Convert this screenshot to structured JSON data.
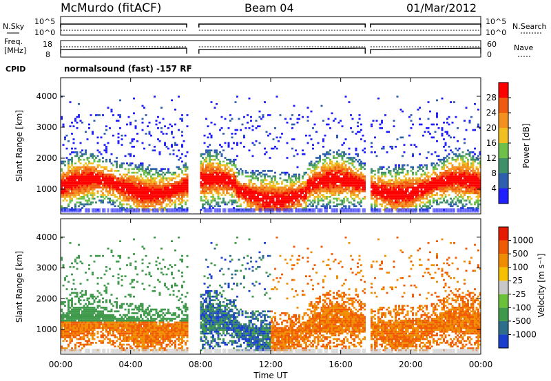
{
  "header": {
    "station": "McMurdo (fitACF)",
    "beam": "Beam 04",
    "date": "01/Mar/2012"
  },
  "top_panels": {
    "nsky_label": "N.Sky",
    "nsky_ticks": [
      "10^5",
      "10^0"
    ],
    "nsearch_label": "N.Search",
    "nsearch_ticks": [
      "10^5",
      "10^0"
    ],
    "freq_label_1": "Freq.",
    "freq_label_2": "[MHz]",
    "freq_ticks": [
      "18",
      "8"
    ],
    "nave_label": "Nave",
    "nave_ticks": [
      "60",
      "0"
    ],
    "cpid_label": "CPID",
    "cpid_value": "normalsound (fast) -157 RF"
  },
  "chart_data": [
    {
      "type": "heatmap",
      "name": "power",
      "ylabel": "Slant Range [km]",
      "xlabel": "",
      "ylim": [
        200,
        4600
      ],
      "yticks": [
        1000,
        2000,
        3000,
        4000
      ],
      "xlim": [
        0,
        24
      ],
      "data_gaps_hours": [
        [
          7.2,
          7.9
        ],
        [
          17.4,
          17.7
        ]
      ],
      "colorbar_label": "Power [dB]",
      "colorbar_ticks": [
        4,
        8,
        12,
        16,
        20,
        24,
        28
      ],
      "colorbar_range": [
        0,
        32
      ],
      "colorbar_colors": [
        "#1e1eff",
        "#2e5fae",
        "#3e8f6a",
        "#6fc04a",
        "#f0c020",
        "#f39020",
        "#f05a10",
        "#ff0000"
      ]
    },
    {
      "type": "heatmap",
      "name": "velocity",
      "ylabel": "Slant Range [km]",
      "xlabel": "Time UT",
      "ylim": [
        200,
        4600
      ],
      "yticks": [
        1000,
        2000,
        3000,
        4000
      ],
      "xlim": [
        0,
        24
      ],
      "xticks": [
        "00:00",
        "04:00",
        "08:00",
        "12:00",
        "16:00",
        "20:00",
        "00:00"
      ],
      "data_gaps_hours": [
        [
          7.2,
          7.9
        ],
        [
          17.4,
          17.7
        ]
      ],
      "colorbar_label": "Velocity [m s⁻¹]",
      "colorbar_ticks": [
        "1000",
        "500",
        "100",
        "25",
        "-25",
        "-100",
        "-500",
        "-1000"
      ],
      "colorbar_colors": [
        "#1a3fcf",
        "#2f6e8a",
        "#3e9a4a",
        "#6cc13a",
        "#c8c8c8",
        "#f5c000",
        "#f08c00",
        "#f05a00",
        "#e51a00"
      ]
    }
  ],
  "colors": {
    "axis": "#000000",
    "scatter_band_low": "#1e1eff"
  }
}
